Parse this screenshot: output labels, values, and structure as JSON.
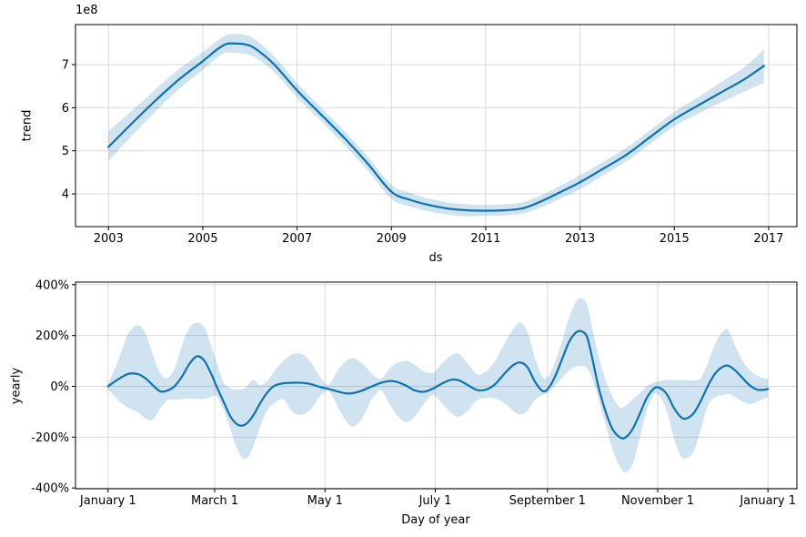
{
  "figure": {
    "background": "#ffffff",
    "line_color": "#0d72b2",
    "band_fill": "rgba(13,114,178,0.2)",
    "grid_color": "#d9d9d9",
    "spine_color": "#000000",
    "tick_label_color": "#000000",
    "offset_label": "1e8"
  },
  "chart_data": [
    {
      "type": "line",
      "name": "trend-component",
      "xlabel": "ds",
      "ylabel": "trend",
      "offset_label": "1e8",
      "grid": true,
      "legend": "none",
      "xlim": [
        2002.3,
        2017.6
      ],
      "ylim": [
        3.24,
        7.93
      ],
      "y_unit_multiplier": 100000000,
      "xtick_positions": [
        2003,
        2005,
        2007,
        2009,
        2011,
        2013,
        2015,
        2017
      ],
      "xtick_labels": [
        "2003",
        "2005",
        "2007",
        "2009",
        "2011",
        "2013",
        "2015",
        "2017"
      ],
      "ytick_positions": [
        4,
        5,
        6,
        7
      ],
      "ytick_labels": [
        "4",
        "5",
        "6",
        "7"
      ],
      "series": [
        {
          "name": "trend",
          "x": [
            2003.0,
            2003.5,
            2004.0,
            2004.5,
            2005.0,
            2005.3,
            2005.5,
            2005.7,
            2005.9,
            2006.1,
            2006.5,
            2007.0,
            2007.5,
            2008.0,
            2008.5,
            2009.0,
            2009.4,
            2009.8,
            2010.2,
            2010.6,
            2011.0,
            2011.4,
            2011.8,
            2012.2,
            2012.6,
            2013.0,
            2013.5,
            2014.0,
            2014.5,
            2015.0,
            2015.5,
            2016.0,
            2016.5,
            2016.9
          ],
          "y": [
            5.09,
            5.64,
            6.17,
            6.66,
            7.08,
            7.35,
            7.48,
            7.49,
            7.47,
            7.38,
            7.02,
            6.4,
            5.85,
            5.3,
            4.7,
            4.05,
            3.86,
            3.74,
            3.66,
            3.62,
            3.61,
            3.62,
            3.67,
            3.84,
            4.05,
            4.27,
            4.59,
            4.92,
            5.33,
            5.73,
            6.05,
            6.36,
            6.67,
            6.97
          ],
          "lower": [
            4.77,
            5.35,
            5.92,
            6.44,
            6.88,
            7.16,
            7.28,
            7.27,
            7.25,
            7.17,
            6.84,
            6.24,
            5.7,
            5.14,
            4.54,
            3.89,
            3.71,
            3.59,
            3.52,
            3.48,
            3.49,
            3.5,
            3.55,
            3.7,
            3.9,
            4.11,
            4.44,
            4.77,
            5.17,
            5.57,
            5.86,
            6.13,
            6.38,
            6.58
          ],
          "upper": [
            5.46,
            5.93,
            6.43,
            6.9,
            7.29,
            7.55,
            7.69,
            7.71,
            7.69,
            7.59,
            7.21,
            6.57,
            6.01,
            5.46,
            4.86,
            4.21,
            4.02,
            3.89,
            3.8,
            3.76,
            3.74,
            3.76,
            3.81,
            3.98,
            4.2,
            4.43,
            4.75,
            5.08,
            5.49,
            5.9,
            6.24,
            6.6,
            6.95,
            7.36
          ]
        }
      ]
    },
    {
      "type": "line",
      "name": "yearly-seasonality",
      "xlabel": "Day of year",
      "ylabel": "yearly",
      "grid": true,
      "legend": "none",
      "xlim": [
        -18,
        381
      ],
      "ylim": [
        -403,
        410
      ],
      "xtick_positions": [
        0,
        59,
        120,
        181,
        243,
        304,
        365
      ],
      "xtick_labels": [
        "January 1",
        "March 1",
        "May 1",
        "July 1",
        "September 1",
        "November 1",
        "January 1"
      ],
      "ytick_positions": [
        -400,
        -200,
        0,
        200,
        400
      ],
      "ytick_labels": [
        "-400%",
        "-200%",
        "0%",
        "200%",
        "400%"
      ],
      "series": [
        {
          "name": "yearly",
          "x": [
            0,
            5,
            10,
            13,
            17,
            21,
            25,
            29,
            33,
            37,
            41,
            45,
            49,
            53,
            57,
            60,
            64,
            68,
            72,
            76,
            80,
            84,
            88,
            92,
            97,
            102,
            107,
            112,
            117,
            122,
            127,
            132,
            136,
            141,
            146,
            151,
            156,
            160,
            165,
            170,
            175,
            180,
            185,
            190,
            194,
            199,
            204,
            209,
            214,
            219,
            224,
            228,
            232,
            236,
            240,
            243,
            247,
            251,
            255,
            259,
            262,
            265,
            268,
            271,
            275,
            279,
            283,
            286,
            290,
            294,
            298,
            302,
            305,
            309,
            313,
            317,
            320,
            324,
            328,
            332,
            336,
            340,
            343,
            347,
            351,
            355,
            359,
            362,
            365
          ],
          "y": [
            0,
            25,
            46,
            51,
            47,
            30,
            3,
            -20,
            -16,
            2,
            40,
            88,
            118,
            103,
            50,
            0,
            -62,
            -122,
            -152,
            -150,
            -118,
            -68,
            -25,
            2,
            12,
            14,
            14,
            9,
            -2,
            -10,
            -20,
            -28,
            -26,
            -15,
            0,
            14,
            21,
            17,
            2,
            -17,
            -21,
            -8,
            12,
            26,
            24,
            5,
            -14,
            -13,
            8,
            48,
            83,
            94,
            75,
            20,
            -17,
            -12,
            35,
            105,
            175,
            213,
            216,
            193,
            105,
            5,
            -95,
            -168,
            -200,
            -202,
            -170,
            -110,
            -45,
            -8,
            -6,
            -30,
            -85,
            -122,
            -126,
            -105,
            -55,
            5,
            52,
            77,
            81,
            62,
            32,
            3,
            -13,
            -14,
            -10
          ],
          "lower": [
            -12,
            -50,
            -80,
            -90,
            -105,
            -128,
            -131,
            -85,
            -55,
            -53,
            -50,
            -48,
            -50,
            -50,
            -42,
            -38,
            -95,
            -175,
            -255,
            -286,
            -242,
            -160,
            -95,
            -65,
            -52,
            -100,
            -112,
            -90,
            -42,
            -18,
            -80,
            -140,
            -158,
            -120,
            -50,
            -16,
            -72,
            -115,
            -142,
            -115,
            -65,
            -34,
            -70,
            -105,
            -120,
            -95,
            -55,
            -46,
            -48,
            -65,
            -95,
            -112,
            -95,
            -55,
            -36,
            -25,
            2,
            32,
            62,
            78,
            80,
            72,
            25,
            -38,
            -145,
            -248,
            -315,
            -338,
            -310,
            -205,
            -95,
            -32,
            -38,
            -95,
            -205,
            -275,
            -283,
            -255,
            -165,
            -72,
            -42,
            -33,
            -30,
            -42,
            -60,
            -70,
            -60,
            -50,
            -43
          ],
          "upper": [
            10,
            90,
            190,
            225,
            240,
            205,
            120,
            50,
            32,
            75,
            165,
            230,
            250,
            235,
            160,
            95,
            15,
            -8,
            -12,
            -6,
            26,
            5,
            20,
            60,
            100,
            126,
            128,
            95,
            40,
            6,
            62,
            102,
            110,
            88,
            48,
            30,
            72,
            92,
            100,
            82,
            58,
            54,
            92,
            122,
            127,
            90,
            48,
            58,
            100,
            165,
            225,
            250,
            215,
            115,
            40,
            35,
            90,
            175,
            270,
            335,
            347,
            320,
            225,
            128,
            28,
            -40,
            -82,
            -78,
            -52,
            -28,
            0,
            15,
            20,
            26,
            24,
            25,
            25,
            23,
            35,
            95,
            172,
            215,
            222,
            158,
            100,
            62,
            42,
            33,
            28
          ]
        }
      ]
    }
  ]
}
